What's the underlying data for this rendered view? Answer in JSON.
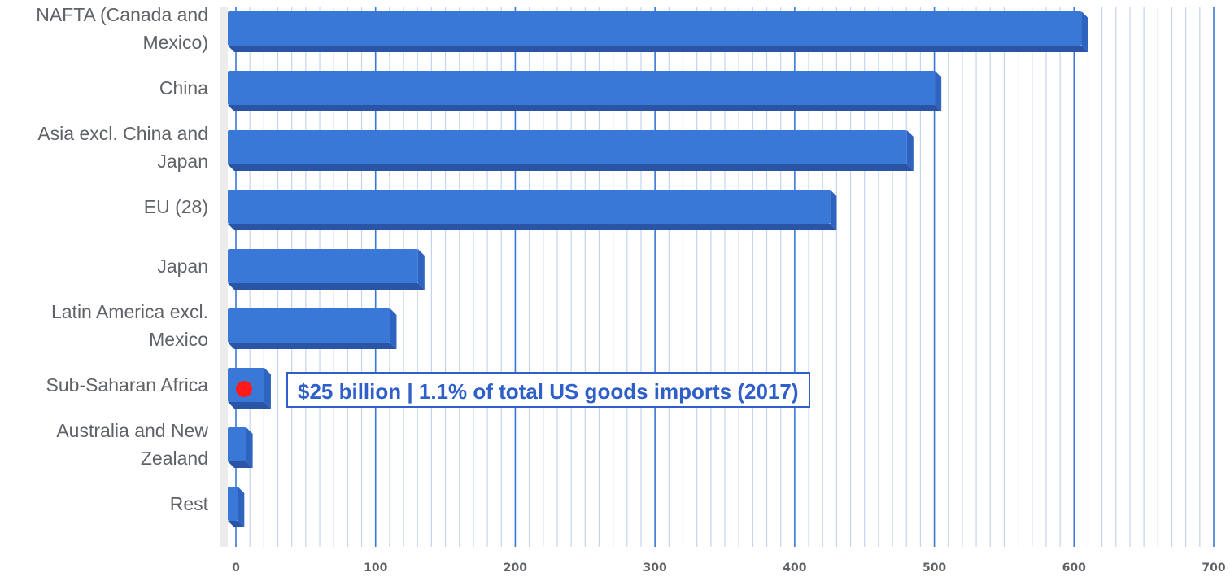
{
  "chart_data": {
    "type": "bar",
    "orientation": "horizontal",
    "categories": [
      "NAFTA (Canada and\nMexico)",
      "China",
      "Asia excl. China and\nJapan",
      "EU (28)",
      "Japan",
      "Latin America excl.\nMexico",
      "Sub-Saharan Africa",
      "Australia and New\nZealand",
      "Rest"
    ],
    "values": [
      610,
      505,
      485,
      430,
      135,
      115,
      25,
      12,
      6
    ],
    "xlim": [
      0,
      700
    ],
    "xticks": [
      "0",
      "100",
      "200",
      "300",
      "400",
      "500",
      "600",
      "700"
    ],
    "grid": true,
    "colors": {
      "bar": "#3a78d8",
      "bar_dark": "#2a55a6",
      "grid_major": "#3a78d8",
      "grid_minor": "#c3d4f0",
      "label": "#5f6368",
      "highlight": "#ff1a1a"
    },
    "annotation": {
      "category": "Sub-Saharan Africa",
      "text": "$25 billion  |  1.1% of total US goods imports (2017)"
    }
  }
}
